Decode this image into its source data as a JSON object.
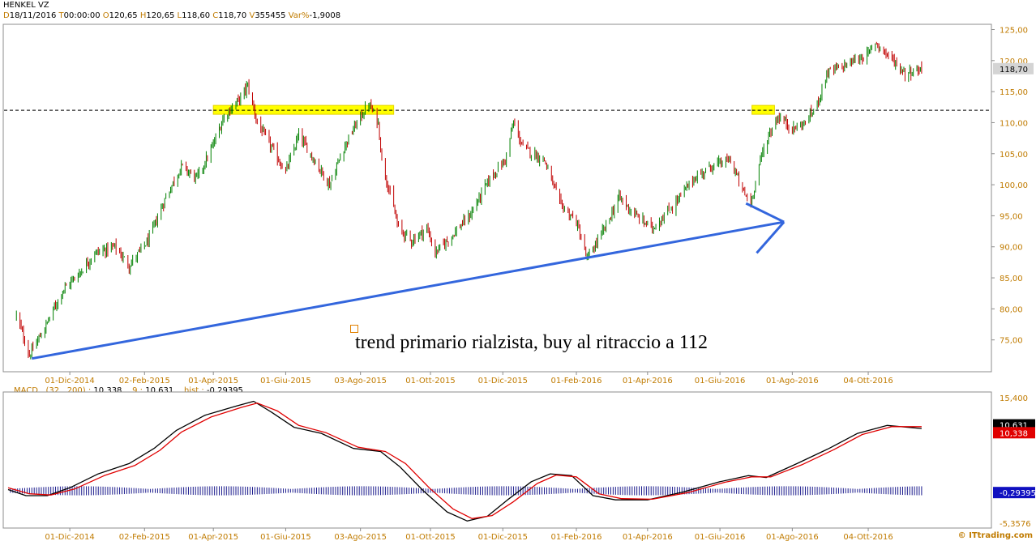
{
  "header": {
    "symbol": "HENKEL VZ",
    "date_key": "D",
    "date": "18/11/2016",
    "time_key": "T",
    "time": "00:00:00",
    "open_key": "O",
    "open": "120,65",
    "high_key": "H",
    "high": "120,65",
    "low_key": "L",
    "low": "118,60",
    "close_key": "C",
    "close": "118,70",
    "volume_key": "V",
    "volume": "355455",
    "var_key": "Var%",
    "var": "-1,9008"
  },
  "macd_header": {
    "label": "MACD",
    "params": "(32 , 200) :",
    "macd_value": "10,338",
    "signal_period": "9 :",
    "signal_value": "10,631",
    "hist_label": "hist :",
    "hist_value": "-0,29395"
  },
  "annotation": "trend primario rialzista, buy al ritraccio a 112",
  "watermark": "© ITtrading.com",
  "colors": {
    "up_candle": "#008000",
    "down_candle": "#c00000",
    "trendline": "#3366dd",
    "highlight": "#ffff00",
    "axis_text": "#c07b00",
    "macd_line": "#000000",
    "signal_line": "#e00000",
    "histogram": "#1a1a8c"
  },
  "chart_data": [
    {
      "type": "candlestick",
      "title": "HENKEL VZ",
      "ylim": [
        70,
        125
      ],
      "y_ticks": [
        "125,00",
        "120,00",
        "115,00",
        "110,00",
        "105,00",
        "100,00",
        "95,00",
        "90,00",
        "85,00",
        "80,00",
        "75,00"
      ],
      "y_tick_values": [
        125,
        120,
        115,
        110,
        105,
        100,
        95,
        90,
        85,
        80,
        75
      ],
      "x_tick_labels": [
        "01-Dic-2014",
        "02-Feb-2015",
        "01-Apr-2015",
        "01-Giu-2015",
        "03-Ago-2015",
        "01-Ott-2015",
        "01-Dic-2015",
        "01-Feb-2016",
        "01-Apr-2016",
        "01-Giu-2016",
        "01-Ago-2016",
        "04-Ott-2016"
      ],
      "last_price_label": "118,70",
      "last_price": 118.7,
      "resistance_level": 112,
      "close_path": [
        [
          "2014-10-17",
          79
        ],
        [
          "2014-10-28",
          72.5
        ],
        [
          "2014-11-10",
          77
        ],
        [
          "2014-11-25",
          83
        ],
        [
          "2014-12-10",
          86
        ],
        [
          "2014-12-22",
          89
        ],
        [
          "2015-01-08",
          90
        ],
        [
          "2015-01-20",
          87
        ],
        [
          "2015-02-05",
          91
        ],
        [
          "2015-02-20",
          98
        ],
        [
          "2015-03-05",
          103
        ],
        [
          "2015-03-18",
          101
        ],
        [
          "2015-03-31",
          106
        ],
        [
          "2015-04-10",
          111
        ],
        [
          "2015-04-24",
          114
        ],
        [
          "2015-04-30",
          116
        ],
        [
          "2015-05-08",
          110
        ],
        [
          "2015-05-20",
          106
        ],
        [
          "2015-06-01",
          102
        ],
        [
          "2015-06-12",
          108
        ],
        [
          "2015-06-25",
          104
        ],
        [
          "2015-07-08",
          100
        ],
        [
          "2015-07-20",
          106
        ],
        [
          "2015-07-31",
          110
        ],
        [
          "2015-08-10",
          113
        ],
        [
          "2015-08-18",
          110
        ],
        [
          "2015-08-21",
          104
        ],
        [
          "2015-08-26",
          100
        ],
        [
          "2015-09-04",
          93
        ],
        [
          "2015-09-15",
          91
        ],
        [
          "2015-09-28",
          93
        ],
        [
          "2015-10-05",
          89
        ],
        [
          "2015-10-15",
          91
        ],
        [
          "2015-11-03",
          95
        ],
        [
          "2015-11-20",
          101
        ],
        [
          "2015-12-03",
          104
        ],
        [
          "2015-12-10",
          110
        ],
        [
          "2015-12-18",
          106
        ],
        [
          "2016-01-05",
          104
        ],
        [
          "2016-01-18",
          97
        ],
        [
          "2016-02-01",
          94
        ],
        [
          "2016-02-10",
          88
        ],
        [
          "2016-02-25",
          93
        ],
        [
          "2016-03-08",
          98
        ],
        [
          "2016-03-22",
          95
        ],
        [
          "2016-04-05",
          93
        ],
        [
          "2016-04-20",
          96
        ],
        [
          "2016-05-10",
          101
        ],
        [
          "2016-05-25",
          103
        ],
        [
          "2016-06-10",
          104
        ],
        [
          "2016-06-20",
          99
        ],
        [
          "2016-06-27",
          97
        ],
        [
          "2016-07-05",
          104
        ],
        [
          "2016-07-12",
          108
        ],
        [
          "2016-07-20",
          111
        ],
        [
          "2016-08-02",
          109
        ],
        [
          "2016-08-12",
          110
        ],
        [
          "2016-08-22",
          113
        ],
        [
          "2016-08-30",
          118
        ],
        [
          "2016-09-12",
          119
        ],
        [
          "2016-09-22",
          120
        ],
        [
          "2016-10-04",
          121
        ],
        [
          "2016-10-10",
          123
        ],
        [
          "2016-10-20",
          121
        ],
        [
          "2016-11-04",
          118
        ],
        [
          "2016-11-18",
          118.7
        ]
      ],
      "trendline": [
        [
          "2014-10-30",
          72
        ],
        [
          "2016-07-25",
          94
        ]
      ],
      "arrow_tip": [
        "2016-07-25",
        94
      ],
      "arrow_from": [
        "2016-06-23",
        97
      ],
      "highlight_zones": [
        [
          "2015-04-01",
          "2015-08-31",
          112
        ],
        [
          "2016-06-28",
          "2016-07-17",
          112
        ]
      ]
    },
    {
      "type": "line",
      "title": "MACD",
      "ylim": [
        -5.3576,
        15.4
      ],
      "y_ticks": [
        "15,400",
        "-5,3576"
      ],
      "y_tick_values": [
        15.4,
        -5.3576
      ],
      "x_tick_labels": [
        "01-Dic-2014",
        "02-Feb-2015",
        "01-Apr-2015",
        "01-Giu-2015",
        "03-Ago-2015",
        "01-Ott-2015",
        "01-Dic-2015",
        "01-Feb-2016",
        "01-Apr-2016",
        "01-Giu-2016",
        "01-Ago-2016",
        "04-Ott-2016"
      ],
      "series": [
        {
          "name": "MACD",
          "value_label": "10,338",
          "points": [
            [
              "2014-10-10",
              0.2
            ],
            [
              "2014-10-25",
              -0.8
            ],
            [
              "2014-11-12",
              -0.8
            ],
            [
              "2014-12-01",
              0.5
            ],
            [
              "2014-12-25",
              2.8
            ],
            [
              "2015-01-20",
              4.5
            ],
            [
              "2015-02-10",
              7
            ],
            [
              "2015-03-01",
              10
            ],
            [
              "2015-03-25",
              12.5
            ],
            [
              "2015-04-20",
              14
            ],
            [
              "2015-05-05",
              14.8
            ],
            [
              "2015-05-20",
              13
            ],
            [
              "2015-06-08",
              10.5
            ],
            [
              "2015-07-01",
              9.5
            ],
            [
              "2015-07-28",
              7
            ],
            [
              "2015-08-20",
              6.5
            ],
            [
              "2015-09-05",
              4
            ],
            [
              "2015-09-25",
              0
            ],
            [
              "2015-10-15",
              -3.5
            ],
            [
              "2015-11-01",
              -5
            ],
            [
              "2015-11-18",
              -4.2
            ],
            [
              "2015-12-05",
              -1.5
            ],
            [
              "2015-12-25",
              1.5
            ],
            [
              "2016-01-10",
              2.8
            ],
            [
              "2016-01-28",
              2.5
            ],
            [
              "2016-02-15",
              -0.8
            ],
            [
              "2016-03-05",
              -1.5
            ],
            [
              "2016-04-01",
              -1.5
            ],
            [
              "2016-05-01",
              -0.2
            ],
            [
              "2016-06-01",
              1.5
            ],
            [
              "2016-06-25",
              2.5
            ],
            [
              "2016-07-10",
              2.2
            ],
            [
              "2016-08-05",
              4.5
            ],
            [
              "2016-09-01",
              7
            ],
            [
              "2016-09-25",
              9.5
            ],
            [
              "2016-10-20",
              10.8
            ],
            [
              "2016-11-18",
              10.3
            ]
          ]
        },
        {
          "name": "Signal",
          "value_label": "10,631",
          "points": [
            [
              "2014-10-10",
              0.5
            ],
            [
              "2014-10-28",
              -0.5
            ],
            [
              "2014-11-15",
              -0.7
            ],
            [
              "2014-12-05",
              0.3
            ],
            [
              "2014-12-30",
              2.5
            ],
            [
              "2015-01-25",
              4.2
            ],
            [
              "2015-02-15",
              6.7
            ],
            [
              "2015-03-05",
              9.7
            ],
            [
              "2015-03-30",
              12.2
            ],
            [
              "2015-04-25",
              13.8
            ],
            [
              "2015-05-08",
              14.5
            ],
            [
              "2015-05-25",
              13.2
            ],
            [
              "2015-06-12",
              10.8
            ],
            [
              "2015-07-05",
              9.6
            ],
            [
              "2015-08-01",
              7.2
            ],
            [
              "2015-08-24",
              6.5
            ],
            [
              "2015-09-10",
              4.5
            ],
            [
              "2015-09-30",
              0.5
            ],
            [
              "2015-10-20",
              -3
            ],
            [
              "2015-11-05",
              -4.6
            ],
            [
              "2015-11-22",
              -4.1
            ],
            [
              "2015-12-10",
              -1.8
            ],
            [
              "2015-12-30",
              1.2
            ],
            [
              "2016-01-15",
              2.6
            ],
            [
              "2016-02-01",
              2.3
            ],
            [
              "2016-02-20",
              -0.5
            ],
            [
              "2016-03-10",
              -1.3
            ],
            [
              "2016-04-05",
              -1.4
            ],
            [
              "2016-05-05",
              -0.3
            ],
            [
              "2016-06-05",
              1.4
            ],
            [
              "2016-06-28",
              2.3
            ],
            [
              "2016-07-14",
              2.3
            ],
            [
              "2016-08-09",
              4.3
            ],
            [
              "2016-09-05",
              6.8
            ],
            [
              "2016-09-29",
              9.3
            ],
            [
              "2016-10-24",
              10.6
            ],
            [
              "2016-11-18",
              10.6
            ]
          ]
        }
      ],
      "hist_last": -0.29395
    }
  ]
}
